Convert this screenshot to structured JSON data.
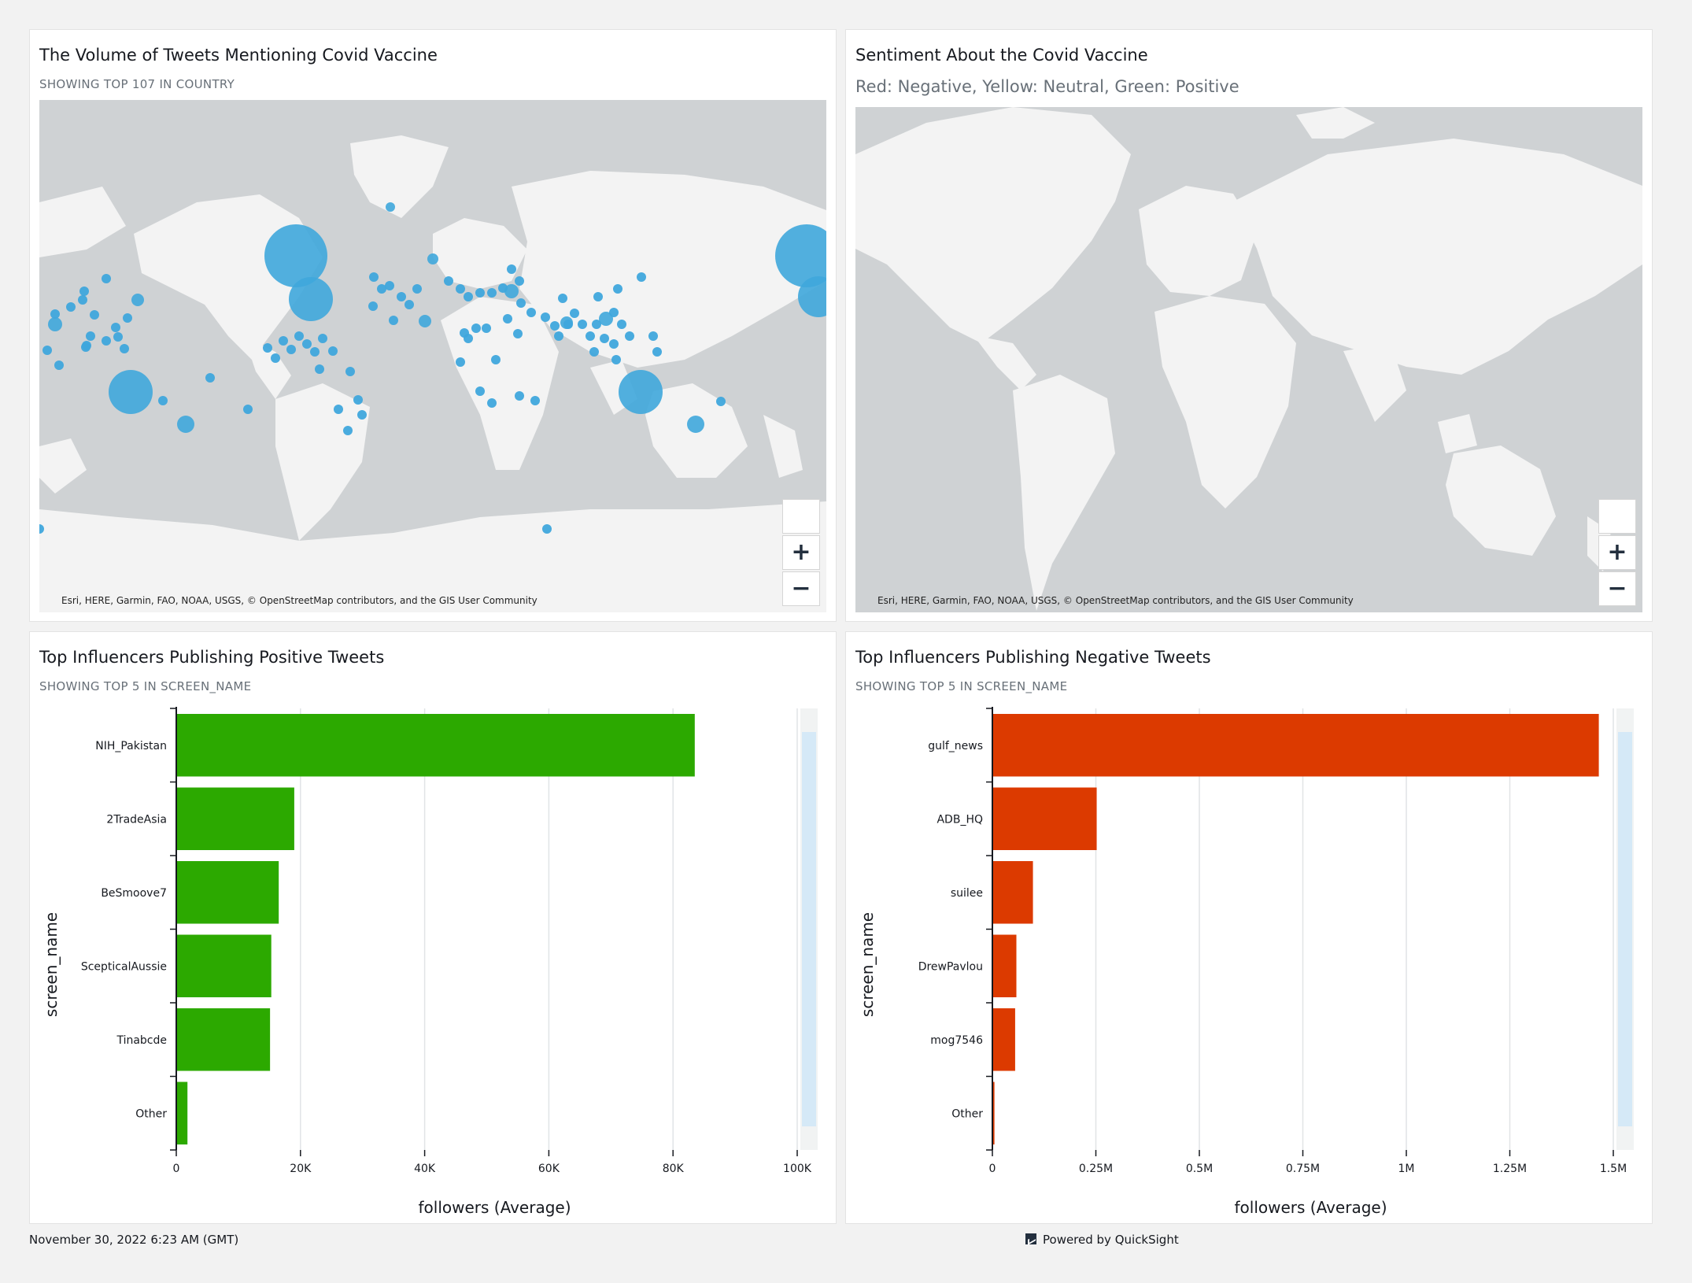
{
  "volume_map": {
    "title": "The Volume of Tweets Mentioning Covid Vaccine",
    "subtitle": "SHOWING TOP 107 IN COUNTRY",
    "attribution": "Esri, HERE, Garmin, FAO, NOAA, USGS, © OpenStreetMap contributors, and the GIS User Community",
    "zoom_in": "+",
    "zoom_out": "−",
    "bubble_color": "#3fa7dc"
  },
  "sentiment_map": {
    "title": "Sentiment About the Covid Vaccine",
    "subtitle": "Red: Negative, Yellow: Neutral, Green: Positive",
    "attribution": "Esri, HERE, Garmin, FAO, NOAA, USGS, © OpenStreetMap contributors, and the GIS User Community",
    "zoom_in": "+",
    "zoom_out": "−"
  },
  "chart_data": [
    {
      "type": "bar",
      "orientation": "horizontal",
      "title": "Top Influencers Publishing Positive Tweets",
      "subtitle": "SHOWING TOP 5 IN SCREEN_NAME",
      "xlabel": "followers (Average)",
      "ylabel": "screen_name",
      "categories": [
        "NIH_Pakistan",
        "2TradeAsia",
        "BeSmoove7",
        "ScepticalAussie",
        "Tinabcde",
        "Other"
      ],
      "values": [
        83500,
        19000,
        16500,
        15300,
        15100,
        1800
      ],
      "xlim": [
        0,
        100000
      ],
      "ticks": [
        0,
        20000,
        40000,
        60000,
        80000,
        100000
      ],
      "tick_labels": [
        "0",
        "20K",
        "40K",
        "60K",
        "80K",
        "100K"
      ],
      "color": "#2ca900",
      "grid": true
    },
    {
      "type": "bar",
      "orientation": "horizontal",
      "title": "Top Influencers Publishing Negative Tweets",
      "subtitle": "SHOWING TOP 5 IN SCREEN_NAME",
      "xlabel": "followers (Average)",
      "ylabel": "screen_name",
      "categories": [
        "gulf_news",
        "ADB_HQ",
        "suilee",
        "DrewPavlou",
        "mog7546",
        "Other"
      ],
      "values": [
        1465000,
        252000,
        98000,
        58000,
        55000,
        5000
      ],
      "xlim": [
        0,
        1500000
      ],
      "ticks": [
        0,
        250000,
        500000,
        750000,
        1000000,
        1250000,
        1500000
      ],
      "tick_labels": [
        "0",
        "0.25M",
        "0.5M",
        "0.75M",
        "1M",
        "1.25M",
        "1.5M"
      ],
      "color": "#dc3a00",
      "grid": true
    }
  ],
  "footer": {
    "timestamp": "November 30, 2022 6:23 AM (GMT)",
    "powered_by": "Powered by QuickSight"
  }
}
